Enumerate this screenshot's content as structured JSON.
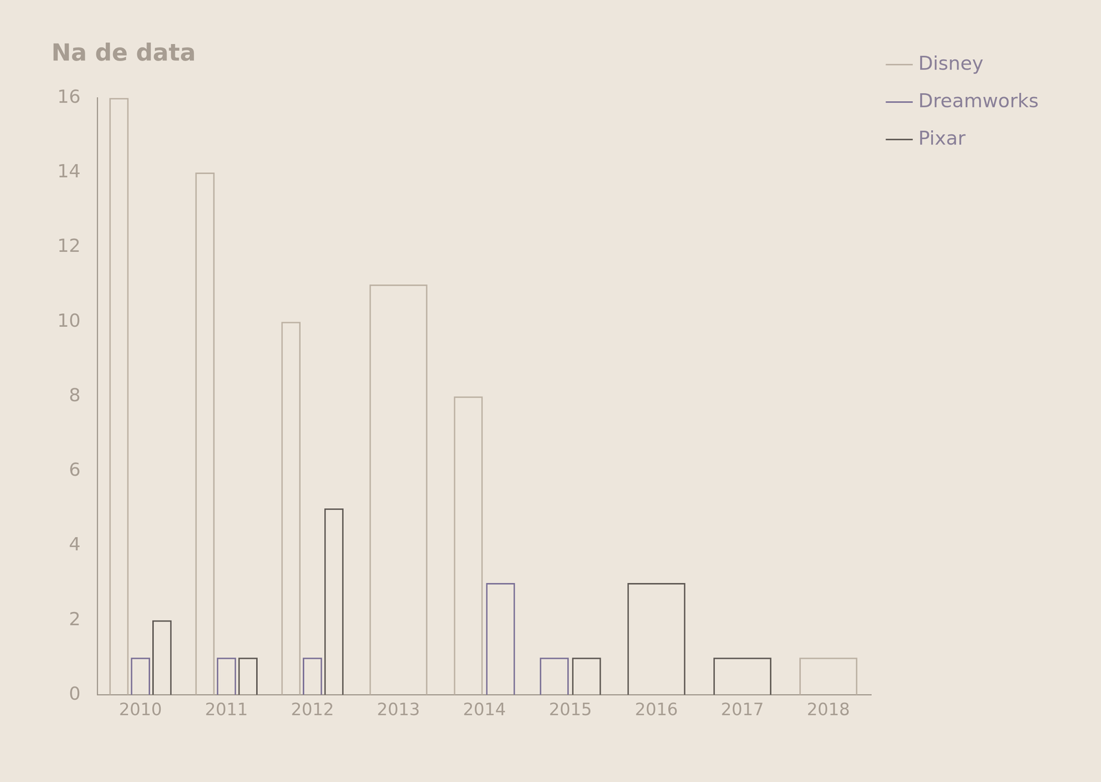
{
  "chart_data": {
    "type": "bar",
    "title": "Na de data",
    "categories": [
      "2010",
      "2011",
      "2012",
      "2013",
      "2014",
      "2015",
      "2016",
      "2017",
      "2018"
    ],
    "series": [
      {
        "name": "Disney",
        "color": "#bdb2a4",
        "values": [
          16,
          14,
          10,
          11,
          8,
          null,
          null,
          null,
          1
        ]
      },
      {
        "name": "Dreamworks",
        "color": "#7b7096",
        "values": [
          1,
          1,
          1,
          null,
          3,
          1,
          null,
          null,
          null
        ]
      },
      {
        "name": "Pixar",
        "color": "#5f5954",
        "values": [
          2,
          1,
          5,
          null,
          null,
          1,
          3,
          1,
          null
        ]
      }
    ],
    "ylim": [
      0,
      16
    ],
    "yticks": [
      0,
      2,
      4,
      6,
      8,
      10,
      12,
      14,
      16
    ],
    "grid": false,
    "legend": "top-right"
  }
}
